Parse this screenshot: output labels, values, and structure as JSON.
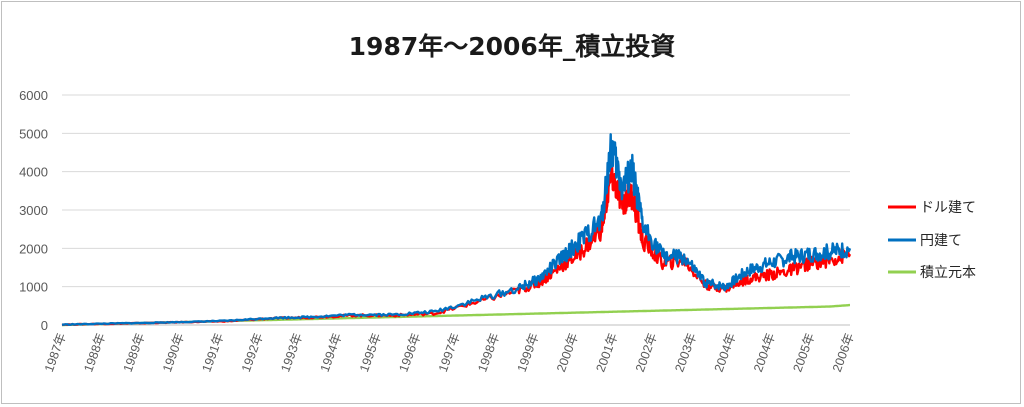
{
  "chart_data": {
    "type": "line",
    "title": "1987年～2006年_積立投資",
    "xlabel": "",
    "ylabel": "",
    "ylim": [
      0,
      6000
    ],
    "y_ticks": [
      "0",
      "1000",
      "2000",
      "3000",
      "4000",
      "5000",
      "6000"
    ],
    "x_tick_labels": [
      "1987年",
      "1988年",
      "1989年",
      "1990年",
      "1991年",
      "1992年",
      "1993年",
      "1994年",
      "1995年",
      "1996年",
      "1997年",
      "1998年",
      "1999年",
      "2000年",
      "2001年",
      "2002年",
      "2003年",
      "2004年",
      "2004年",
      "2005年",
      "2006年"
    ],
    "grid": true,
    "legend_position": "right",
    "x": [
      1987.0,
      1988.0,
      1989.0,
      1990.0,
      1991.0,
      1992.0,
      1993.0,
      1994.0,
      1995.0,
      1996.0,
      1997.0,
      1998.0,
      1998.5,
      1999.0,
      1999.5,
      2000.0,
      2000.25,
      2000.5,
      2000.75,
      2001.0,
      2001.5,
      2002.0,
      2002.5,
      2003.0,
      2003.5,
      2004.0,
      2004.5,
      2005.0,
      2005.5,
      2006.0
    ],
    "series": [
      {
        "name": "ドル建て",
        "color": "#ff0000",
        "values": [
          10,
          30,
          50,
          75,
          100,
          170,
          200,
          250,
          250,
          300,
          600,
          900,
          1100,
          1500,
          1900,
          2500,
          3900,
          3200,
          3400,
          2200,
          1600,
          1700,
          1050,
          950,
          1200,
          1300,
          1400,
          1600,
          1700,
          1850
        ]
      },
      {
        "name": "円建て",
        "color": "#0070c0",
        "values": [
          10,
          35,
          55,
          80,
          110,
          180,
          210,
          270,
          270,
          350,
          650,
          950,
          1200,
          1700,
          2200,
          2700,
          4700,
          3600,
          4000,
          2600,
          1800,
          1750,
          1100,
          1000,
          1400,
          1600,
          1750,
          1850,
          1900,
          2000
        ]
      },
      {
        "name": "積立元本",
        "color": "#92d050",
        "values": [
          0,
          26,
          52,
          78,
          104,
          130,
          156,
          182,
          208,
          234,
          260,
          286,
          299,
          312,
          325,
          338,
          345,
          351,
          358,
          364,
          377,
          390,
          403,
          416,
          429,
          442,
          455,
          468,
          481,
          520
        ]
      }
    ]
  }
}
